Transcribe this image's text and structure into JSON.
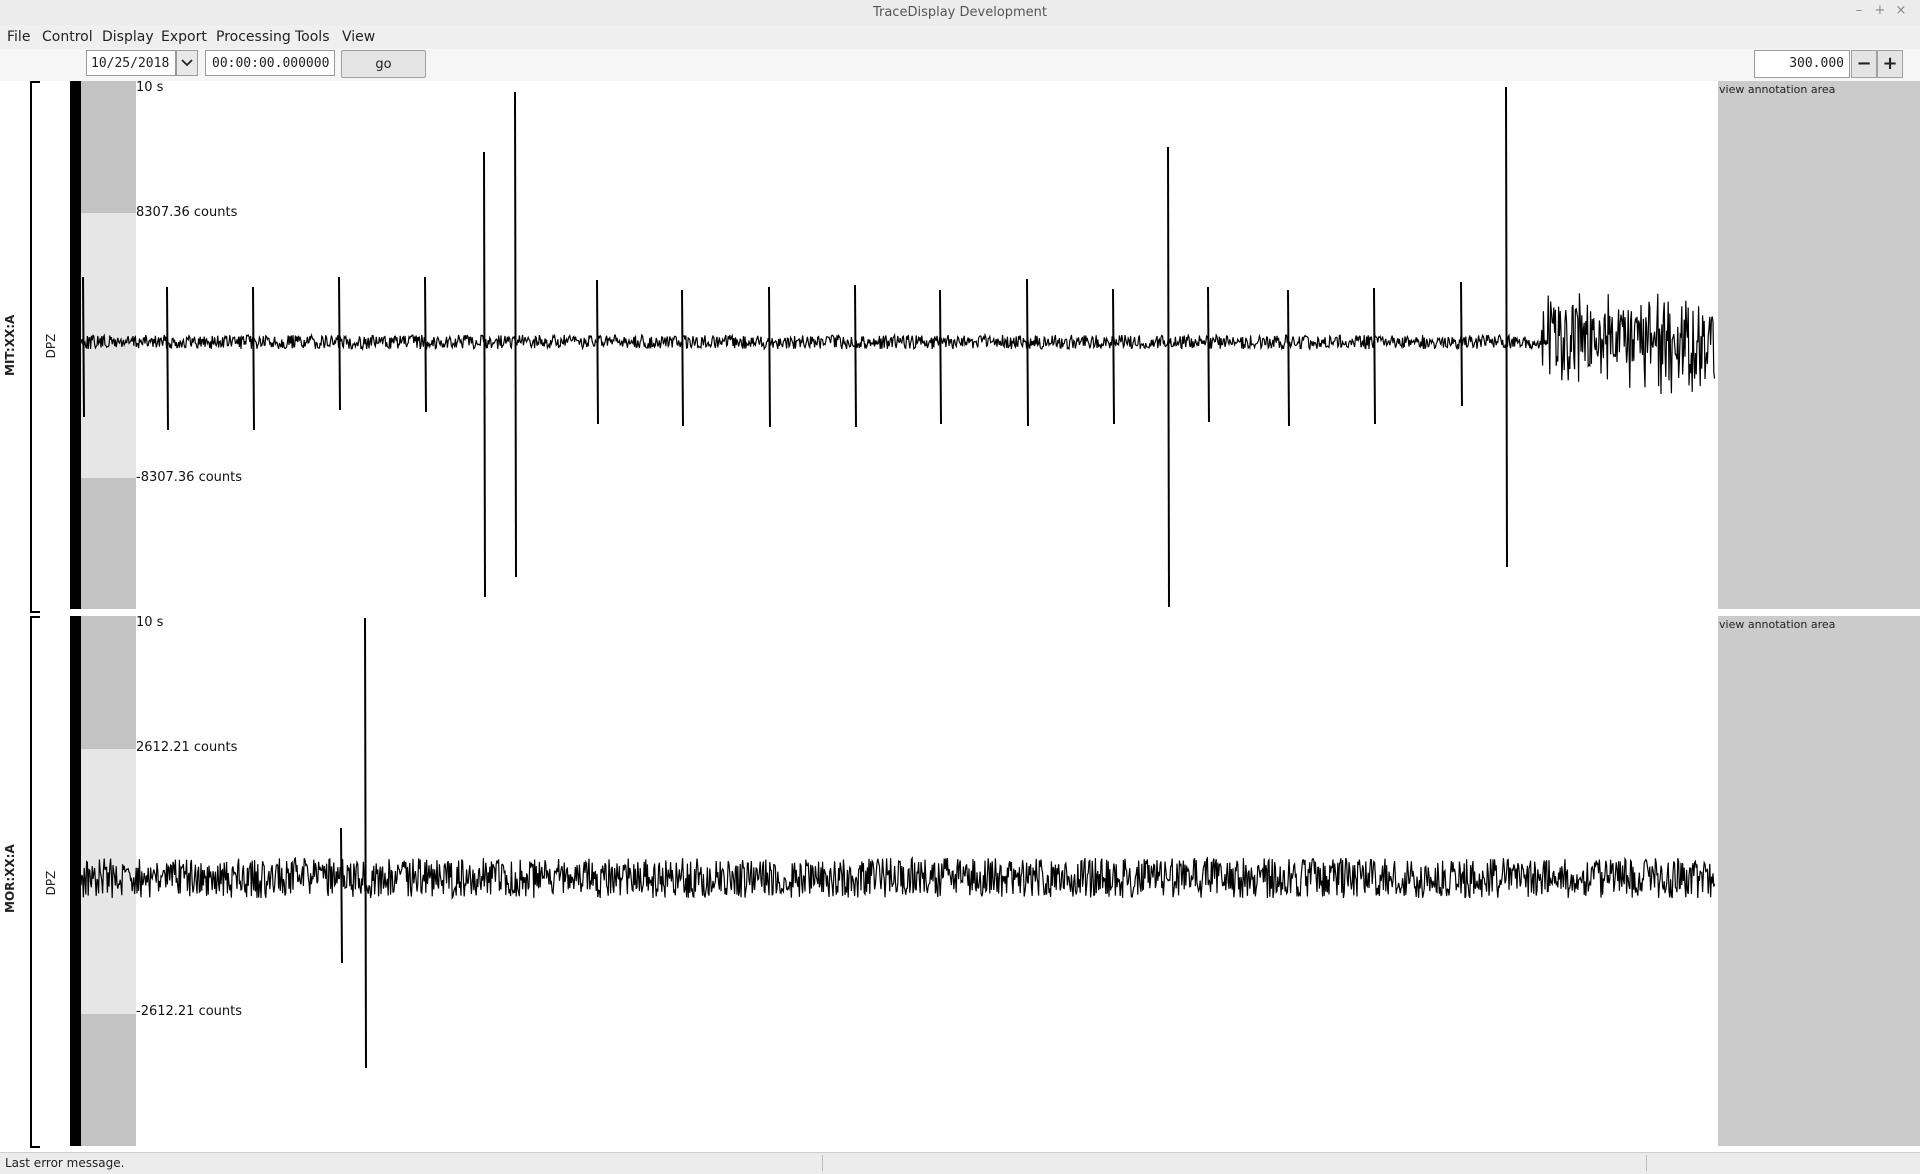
{
  "window": {
    "title": "TraceDisplay Development",
    "controls": [
      "–",
      "+",
      "×"
    ]
  },
  "menu": [
    "File",
    "Control",
    "Display",
    "Export",
    "Processing",
    "Tools",
    "View"
  ],
  "toolbar": {
    "date": "10/25/2018",
    "time": "00:00:00.000000",
    "go_label": "go",
    "window_length": "300.000",
    "minus_label": "−",
    "plus_label": "+"
  },
  "traces": [
    {
      "station": "MIT:XX:A",
      "channel": "DPZ",
      "time_scale": "10 s",
      "amp_max": "8307.36 counts",
      "amp_min": "-8307.36 counts",
      "annotation_label": "view annotation area"
    },
    {
      "station": "MOR:XX:A",
      "channel": "DPZ",
      "time_scale": "10 s",
      "amp_max": "2612.21 counts",
      "amp_min": "-2612.21 counts",
      "annotation_label": "view annotation area"
    }
  ],
  "status": {
    "message": "Last error message."
  }
}
